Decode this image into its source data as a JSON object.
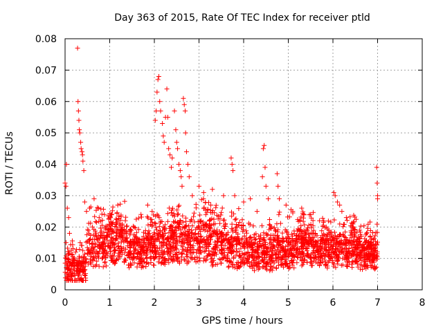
{
  "chart_data": {
    "type": "scatter",
    "title": "Day 363 of 2015, Rate Of TEC Index for receiver ptld",
    "xlabel": "GPS time / hours",
    "ylabel": "ROTI / TECUs",
    "xlim": [
      0,
      8
    ],
    "ylim": [
      0,
      0.08
    ],
    "xticks": [
      0,
      1,
      2,
      3,
      4,
      5,
      6,
      7,
      8
    ],
    "yticks": [
      0,
      0.01,
      0.02,
      0.03,
      0.04,
      0.05,
      0.06,
      0.07,
      0.08
    ],
    "ytick_labels": [
      "0",
      "0.01",
      "0.02",
      "0.03",
      "0.04",
      "0.05",
      "0.06",
      "0.07",
      "0.08"
    ],
    "grid": true,
    "marker": "+",
    "color": "#ff0000",
    "series": [
      {
        "name": "ROTI",
        "points": [
          [
            0.0,
            0.034
          ],
          [
            0.02,
            0.033
          ],
          [
            0.03,
            0.04
          ],
          [
            0.05,
            0.026
          ],
          [
            0.08,
            0.023
          ],
          [
            0.1,
            0.018
          ],
          [
            0.28,
            0.077
          ],
          [
            0.29,
            0.06
          ],
          [
            0.3,
            0.057
          ],
          [
            0.31,
            0.054
          ],
          [
            0.32,
            0.051
          ],
          [
            0.33,
            0.05
          ],
          [
            0.35,
            0.047
          ],
          [
            0.36,
            0.045
          ],
          [
            0.38,
            0.044
          ],
          [
            0.39,
            0.043
          ],
          [
            0.4,
            0.041
          ],
          [
            0.42,
            0.038
          ],
          [
            0.44,
            0.028
          ],
          [
            0.48,
            0.025
          ],
          [
            0.55,
            0.026
          ],
          [
            0.65,
            0.029
          ],
          [
            0.75,
            0.026
          ],
          [
            0.88,
            0.024
          ],
          [
            1.05,
            0.021
          ],
          [
            1.18,
            0.027
          ],
          [
            1.35,
            0.022
          ],
          [
            1.55,
            0.02
          ],
          [
            1.7,
            0.024
          ],
          [
            1.85,
            0.027
          ],
          [
            1.95,
            0.025
          ],
          [
            2.02,
            0.054
          ],
          [
            2.04,
            0.057
          ],
          [
            2.06,
            0.063
          ],
          [
            2.08,
            0.067
          ],
          [
            2.1,
            0.068
          ],
          [
            2.12,
            0.06
          ],
          [
            2.14,
            0.057
          ],
          [
            2.18,
            0.053
          ],
          [
            2.2,
            0.049
          ],
          [
            2.22,
            0.047
          ],
          [
            2.25,
            0.055
          ],
          [
            2.28,
            0.064
          ],
          [
            2.3,
            0.055
          ],
          [
            2.32,
            0.045
          ],
          [
            2.35,
            0.043
          ],
          [
            2.38,
            0.039
          ],
          [
            2.4,
            0.042
          ],
          [
            2.45,
            0.057
          ],
          [
            2.48,
            0.051
          ],
          [
            2.5,
            0.047
          ],
          [
            2.52,
            0.045
          ],
          [
            2.55,
            0.04
          ],
          [
            2.58,
            0.038
          ],
          [
            2.6,
            0.036
          ],
          [
            2.62,
            0.033
          ],
          [
            2.65,
            0.061
          ],
          [
            2.67,
            0.059
          ],
          [
            2.69,
            0.057
          ],
          [
            2.7,
            0.05
          ],
          [
            2.72,
            0.044
          ],
          [
            2.75,
            0.04
          ],
          [
            2.78,
            0.036
          ],
          [
            2.85,
            0.03
          ],
          [
            3.0,
            0.033
          ],
          [
            3.1,
            0.029
          ],
          [
            3.3,
            0.032
          ],
          [
            3.55,
            0.03
          ],
          [
            3.72,
            0.042
          ],
          [
            3.74,
            0.04
          ],
          [
            3.76,
            0.038
          ],
          [
            3.8,
            0.03
          ],
          [
            4.0,
            0.028
          ],
          [
            4.15,
            0.029
          ],
          [
            4.3,
            0.025
          ],
          [
            4.42,
            0.036
          ],
          [
            4.44,
            0.045
          ],
          [
            4.46,
            0.046
          ],
          [
            4.48,
            0.039
          ],
          [
            4.5,
            0.033
          ],
          [
            4.55,
            0.029
          ],
          [
            4.75,
            0.037
          ],
          [
            4.77,
            0.033
          ],
          [
            4.8,
            0.029
          ],
          [
            4.95,
            0.027
          ],
          [
            5.1,
            0.025
          ],
          [
            5.3,
            0.026
          ],
          [
            5.5,
            0.024
          ],
          [
            5.7,
            0.022
          ],
          [
            5.85,
            0.02
          ],
          [
            6.02,
            0.031
          ],
          [
            6.05,
            0.03
          ],
          [
            6.1,
            0.028
          ],
          [
            6.15,
            0.027
          ],
          [
            6.2,
            0.025
          ],
          [
            6.3,
            0.023
          ],
          [
            6.45,
            0.021
          ],
          [
            6.6,
            0.019
          ],
          [
            6.75,
            0.018
          ],
          [
            6.9,
            0.016
          ],
          [
            6.98,
            0.039
          ],
          [
            6.99,
            0.034
          ],
          [
            7.0,
            0.03
          ],
          [
            7.0,
            0.029
          ]
        ]
      }
    ],
    "dense_band": {
      "note": "Dense noise band of ROTI values between 0.003 and 0.03 spanning the full 0-7 hour range",
      "x_range": [
        0,
        7
      ],
      "y_base": [
        0.005,
        0.012,
        0.013,
        0.011,
        0.012,
        0.013,
        0.014,
        0.012,
        0.011,
        0.01,
        0.011,
        0.012,
        0.011,
        0.011,
        0.01
      ],
      "y_spread": [
        0.008,
        0.012,
        0.012,
        0.01,
        0.011,
        0.012,
        0.013,
        0.012,
        0.011,
        0.01,
        0.011,
        0.011,
        0.01,
        0.01,
        0.009
      ]
    }
  }
}
